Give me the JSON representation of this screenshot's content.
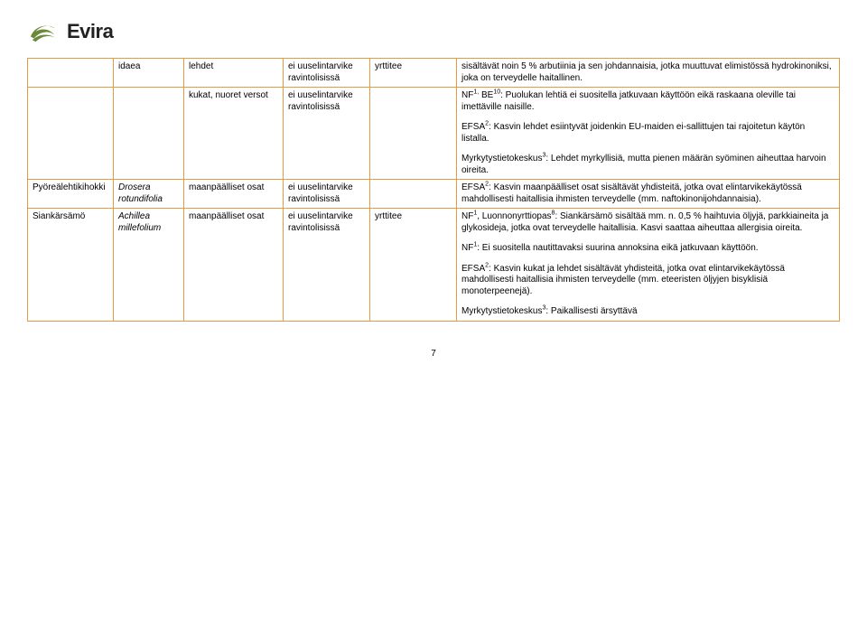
{
  "logo": {
    "text": "Evira",
    "swirl_color": "#6a8a3a"
  },
  "table_border_color": "#e39b4a",
  "rows": [
    {
      "c1": "",
      "c2": "idaea",
      "c3": "lehdet",
      "c4": "ei uuselintarvike ravintolisissä",
      "c5": "yrttitee",
      "c6_parts": [
        {
          "text": "sisältävät noin 5 % arbutiinia ja sen johdannaisia, jotka muuttuvat elimistössä hydrokinoniksi, joka on terveydelle haitallinen."
        }
      ]
    },
    {
      "c1": "",
      "c2": "",
      "c3": "kukat, nuoret versot",
      "c4": "ei uuselintarvike ravintolisissä",
      "c5": "",
      "c6_parts": [
        {
          "prefix": "NF",
          "sup": "1,",
          "mid": " BE",
          "sup2": "10",
          "rest": ": Puolukan lehtiä ei suositella jatkuvaan käyttöön eikä raskaana oleville tai imettäville naisille."
        },
        {
          "prefix": "EFSA",
          "sup": "2",
          "rest": ": Kasvin lehdet esiintyvät joidenkin EU-maiden ei-sallittujen tai rajoitetun käytön listalla."
        },
        {
          "prefix": "Myrkytystietokeskus",
          "sup": "3",
          "rest": ": Lehdet myrkyllisiä, mutta pienen määrän syöminen aiheuttaa harvoin oireita."
        }
      ]
    },
    {
      "c1": "Pyöreälehtikihokki",
      "c2_ital": "Drosera rotundifolia",
      "c3": "maanpäälliset osat",
      "c4": "ei uuselintarvike ravintolisissä",
      "c5": "",
      "c6_parts": [
        {
          "prefix": "EFSA",
          "sup": "2",
          "rest": ": Kasvin maanpäälliset osat sisältävät yhdisteitä, jotka ovat elintarvikekäytössä mahdollisesti haitallisia ihmisten terveydelle (mm. naftokinonijohdannaisia)."
        }
      ]
    },
    {
      "c1": "Siankärsämö",
      "c2_ital": "Achillea millefolium",
      "c3": "maanpäälliset osat",
      "c4": "ei uuselintarvike ravintolisissä",
      "c5": "yrttitee",
      "c6_parts": [
        {
          "prefix": "NF",
          "sup": "1",
          "mid": ", Luonnonyrttiopas",
          "sup2": "8",
          "rest": ": Siankärsämö sisältää mm. n. 0,5 % haihtuvia öljyjä, parkkiaineita ja glykosideja, jotka ovat terveydelle haitallisia. Kasvi saattaa aiheuttaa allergisia oireita."
        },
        {
          "prefix": "NF",
          "sup": "1",
          "rest": ": Ei suositella nautittavaksi suurina annoksina eikä jatkuvaan käyttöön."
        },
        {
          "prefix": "EFSA",
          "sup": "2",
          "rest": ": Kasvin kukat ja lehdet sisältävät yhdisteitä, jotka ovat elintarvikekäytössä mahdollisesti haitallisia ihmisten terveydelle (mm. eteeristen öljyjen bisyklisiä monoterpeenejä)."
        },
        {
          "prefix": "Myrkytystietokeskus",
          "sup": "3",
          "rest": ": Paikallisesti ärsyttävä"
        }
      ]
    }
  ],
  "page_number": "7"
}
